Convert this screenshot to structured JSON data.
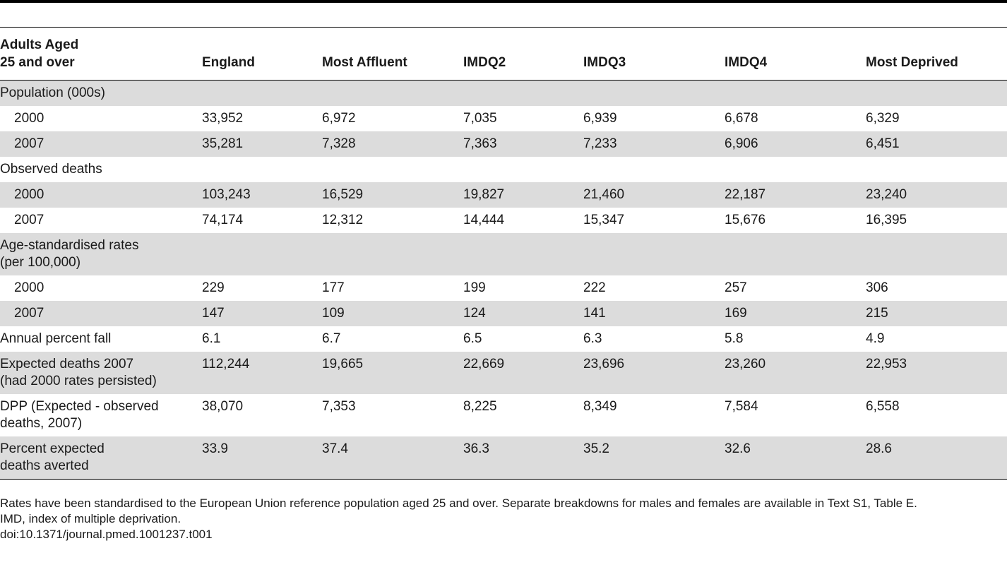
{
  "table": {
    "headers": [
      "Adults Aged\n25 and over",
      "England",
      "Most Affluent",
      "IMDQ2",
      "IMDQ3",
      "IMDQ4",
      "Most Deprived"
    ],
    "rows": [
      {
        "label": "Population (000s)",
        "indent": false,
        "shade": true,
        "values": [
          "",
          "",
          "",
          "",
          "",
          ""
        ]
      },
      {
        "label": "2000",
        "indent": true,
        "shade": false,
        "values": [
          "33,952",
          "6,972",
          "7,035",
          "6,939",
          "6,678",
          "6,329"
        ]
      },
      {
        "label": "2007",
        "indent": true,
        "shade": true,
        "values": [
          "35,281",
          "7,328",
          "7,363",
          "7,233",
          "6,906",
          "6,451"
        ]
      },
      {
        "label": "Observed deaths",
        "indent": false,
        "shade": false,
        "values": [
          "",
          "",
          "",
          "",
          "",
          ""
        ]
      },
      {
        "label": "2000",
        "indent": true,
        "shade": true,
        "values": [
          "103,243",
          "16,529",
          "19,827",
          "21,460",
          "22,187",
          "23,240"
        ]
      },
      {
        "label": "2007",
        "indent": true,
        "shade": false,
        "values": [
          "74,174",
          "12,312",
          "14,444",
          "15,347",
          "15,676",
          "16,395"
        ]
      },
      {
        "label": "Age-standardised rates\n(per 100,000)",
        "indent": false,
        "shade": true,
        "values": [
          "",
          "",
          "",
          "",
          "",
          ""
        ]
      },
      {
        "label": "2000",
        "indent": true,
        "shade": false,
        "values": [
          "229",
          "177",
          "199",
          "222",
          "257",
          "306"
        ]
      },
      {
        "label": "2007",
        "indent": true,
        "shade": true,
        "values": [
          "147",
          "109",
          "124",
          "141",
          "169",
          "215"
        ]
      },
      {
        "label": "Annual percent fall",
        "indent": false,
        "shade": false,
        "values": [
          "6.1",
          "6.7",
          "6.5",
          "6.3",
          "5.8",
          "4.9"
        ]
      },
      {
        "label": "Expected deaths 2007\n(had 2000 rates persisted)",
        "indent": false,
        "shade": true,
        "values": [
          "112,244",
          "19,665",
          "22,669",
          "23,696",
          "23,260",
          "22,953"
        ]
      },
      {
        "label": "DPP (Expected - observed\ndeaths, 2007)",
        "indent": false,
        "shade": false,
        "values": [
          "38,070",
          "7,353",
          "8,225",
          "8,349",
          "7,584",
          "6,558"
        ]
      },
      {
        "label": "Percent expected\ndeaths averted",
        "indent": false,
        "shade": true,
        "values": [
          "33.9",
          "37.4",
          "36.3",
          "35.2",
          "32.6",
          "28.6"
        ]
      }
    ]
  },
  "footnotes": {
    "standardisation": "Rates have been standardised to the European Union reference population aged 25 and over. Separate breakdowns for males and females are available in Text S1, Table E.",
    "imd": "IMD, index of multiple deprivation.",
    "doi": "doi:10.1371/journal.pmed.1001237.t001"
  }
}
